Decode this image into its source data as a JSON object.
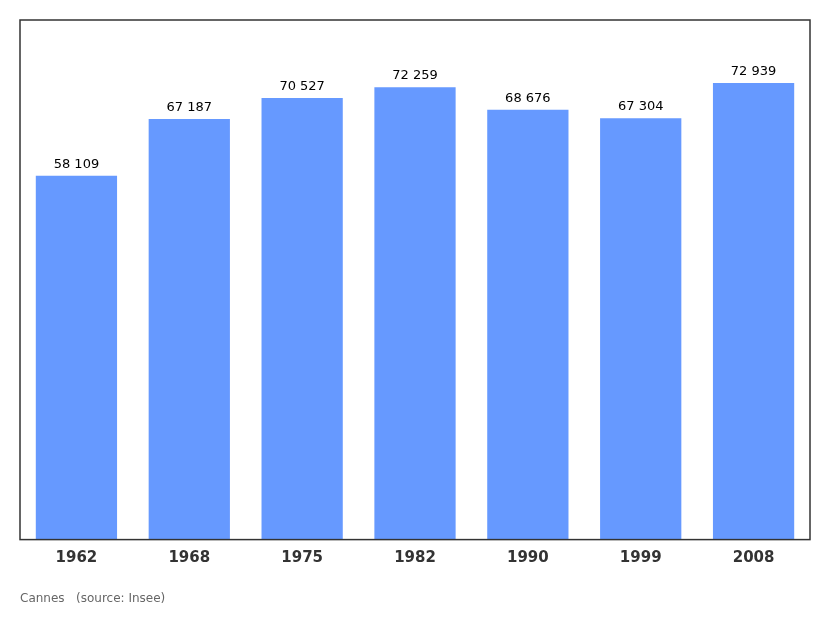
{
  "chart_data": {
    "type": "bar",
    "subtitle": "Cannes   (source: Insee)",
    "categories": [
      "1962",
      "1968",
      "1975",
      "1982",
      "1990",
      "1999",
      "2008"
    ],
    "values": [
      58109,
      67187,
      70527,
      72259,
      68676,
      67304,
      72939
    ],
    "value_labels": [
      "58 109",
      "67 187",
      "70 527",
      "72 259",
      "68 676",
      "67 304",
      "72 939"
    ],
    "data_labels": true,
    "color": "#6699ff",
    "ylim": [
      0,
      83000
    ],
    "grid": false,
    "tick_labels": "x",
    "legend": false
  }
}
